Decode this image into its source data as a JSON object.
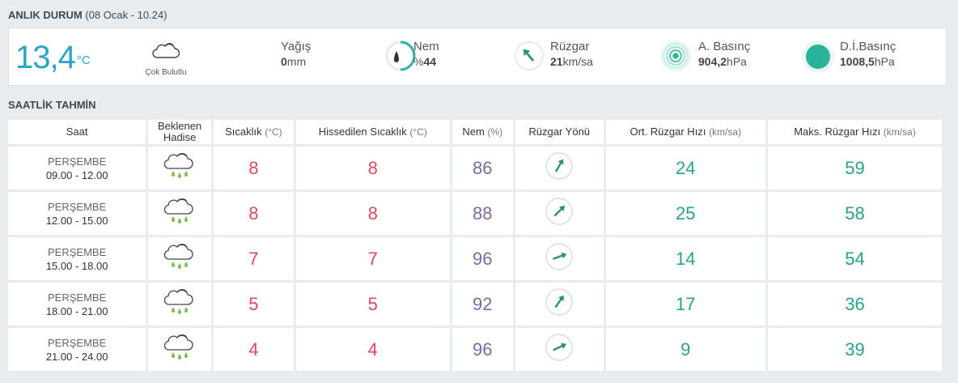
{
  "current": {
    "title": "ANLIK DURUM",
    "datetime": "(08 Ocak - 10.24)",
    "temp_value": "13,4",
    "temp_unit": "°C",
    "condition": "Çok Bulutlu",
    "precip_label": "Yağış",
    "precip_value": "0",
    "precip_unit": "mm",
    "humidity_label": "Nem",
    "humidity_prefix": "%",
    "humidity_value": "44",
    "wind_label": "Rüzgar",
    "wind_value": "21",
    "wind_unit": "km/sa",
    "pressure_label": "A. Basınç",
    "pressure_value": "904,2",
    "pressure_unit": "hPa",
    "sea_pressure_label": "D.İ.Basınç",
    "sea_pressure_value": "1008,5",
    "sea_pressure_unit": "hPa",
    "accent_color": "#2aa4c7",
    "green_color": "#2bb39a",
    "icons": {
      "condition": "cloud-icon",
      "humidity": "humidity-gauge-icon",
      "wind": "wind-direction-icon",
      "pressure": "pressure-icon",
      "sea_pressure": "sea-pressure-icon"
    }
  },
  "forecast": {
    "title": "SAATLİK TAHMİN",
    "headers": {
      "time": "Saat",
      "event": "Beklenen Hadise",
      "temp": "Sıcaklık",
      "temp_unit": "(°C)",
      "feels": "Hissedilen Sıcaklık",
      "feels_unit": "(°C)",
      "humidity": "Nem",
      "humidity_unit": "(%)",
      "wind_dir": "Rüzgar Yönü",
      "wind_avg": "Ort. Rüzgar Hızı",
      "wind_avg_unit": "(km/sa)",
      "wind_max": "Maks. Rüzgar Hızı",
      "wind_max_unit": "(km/sa)"
    },
    "rows": [
      {
        "day": "PERŞEMBE",
        "hours": "09.00 - 12.00",
        "temp": "8",
        "feels": "8",
        "humidity": "86",
        "wind_dir_deg": 30,
        "wind_avg": "24",
        "wind_max": "59",
        "event_icon": "rain-cloud-icon"
      },
      {
        "day": "PERŞEMBE",
        "hours": "12.00 - 15.00",
        "temp": "8",
        "feels": "8",
        "humidity": "88",
        "wind_dir_deg": 45,
        "wind_avg": "25",
        "wind_max": "58",
        "event_icon": "rain-cloud-icon"
      },
      {
        "day": "PERŞEMBE",
        "hours": "15.00 - 18.00",
        "temp": "7",
        "feels": "7",
        "humidity": "96",
        "wind_dir_deg": 70,
        "wind_avg": "14",
        "wind_max": "54",
        "event_icon": "rain-cloud-icon"
      },
      {
        "day": "PERŞEMBE",
        "hours": "18.00 - 21.00",
        "temp": "5",
        "feels": "5",
        "humidity": "92",
        "wind_dir_deg": 35,
        "wind_avg": "17",
        "wind_max": "36",
        "event_icon": "rain-cloud-icon"
      },
      {
        "day": "PERŞEMBE",
        "hours": "21.00 - 24.00",
        "temp": "4",
        "feels": "4",
        "humidity": "96",
        "wind_dir_deg": 65,
        "wind_avg": "9",
        "wind_max": "39",
        "event_icon": "rain-cloud-icon"
      }
    ]
  }
}
